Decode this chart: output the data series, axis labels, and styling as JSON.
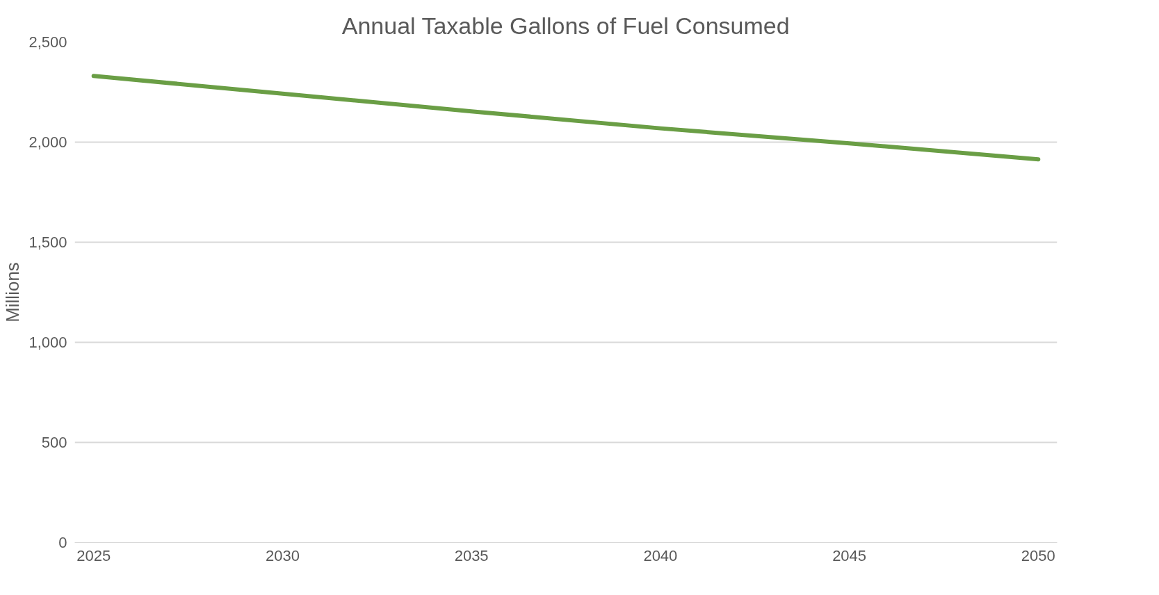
{
  "chart_data": {
    "type": "line",
    "title": "Annual Taxable Gallons of Fuel Consumed",
    "ylabel": "Millions",
    "x": [
      2025,
      2030,
      2035,
      2040,
      2045,
      2050
    ],
    "series": [
      {
        "color": "#6a9e45",
        "values": [
          2331,
          2242,
          2154,
          2069,
          1994,
          1914
        ]
      }
    ],
    "xlim": [
      2024.5,
      2050.5
    ],
    "xticks": [
      2025,
      2030,
      2035,
      2040,
      2045,
      2050
    ],
    "ylim": [
      0,
      2500
    ],
    "yticks": [
      {
        "value": 0,
        "label": "0"
      },
      {
        "value": 500,
        "label": "500"
      },
      {
        "value": 1000,
        "label": "1,000"
      },
      {
        "value": 1500,
        "label": "1,500"
      },
      {
        "value": 2000,
        "label": "2,000"
      },
      {
        "value": 2500,
        "label": "2,500"
      }
    ],
    "grid": "y"
  }
}
